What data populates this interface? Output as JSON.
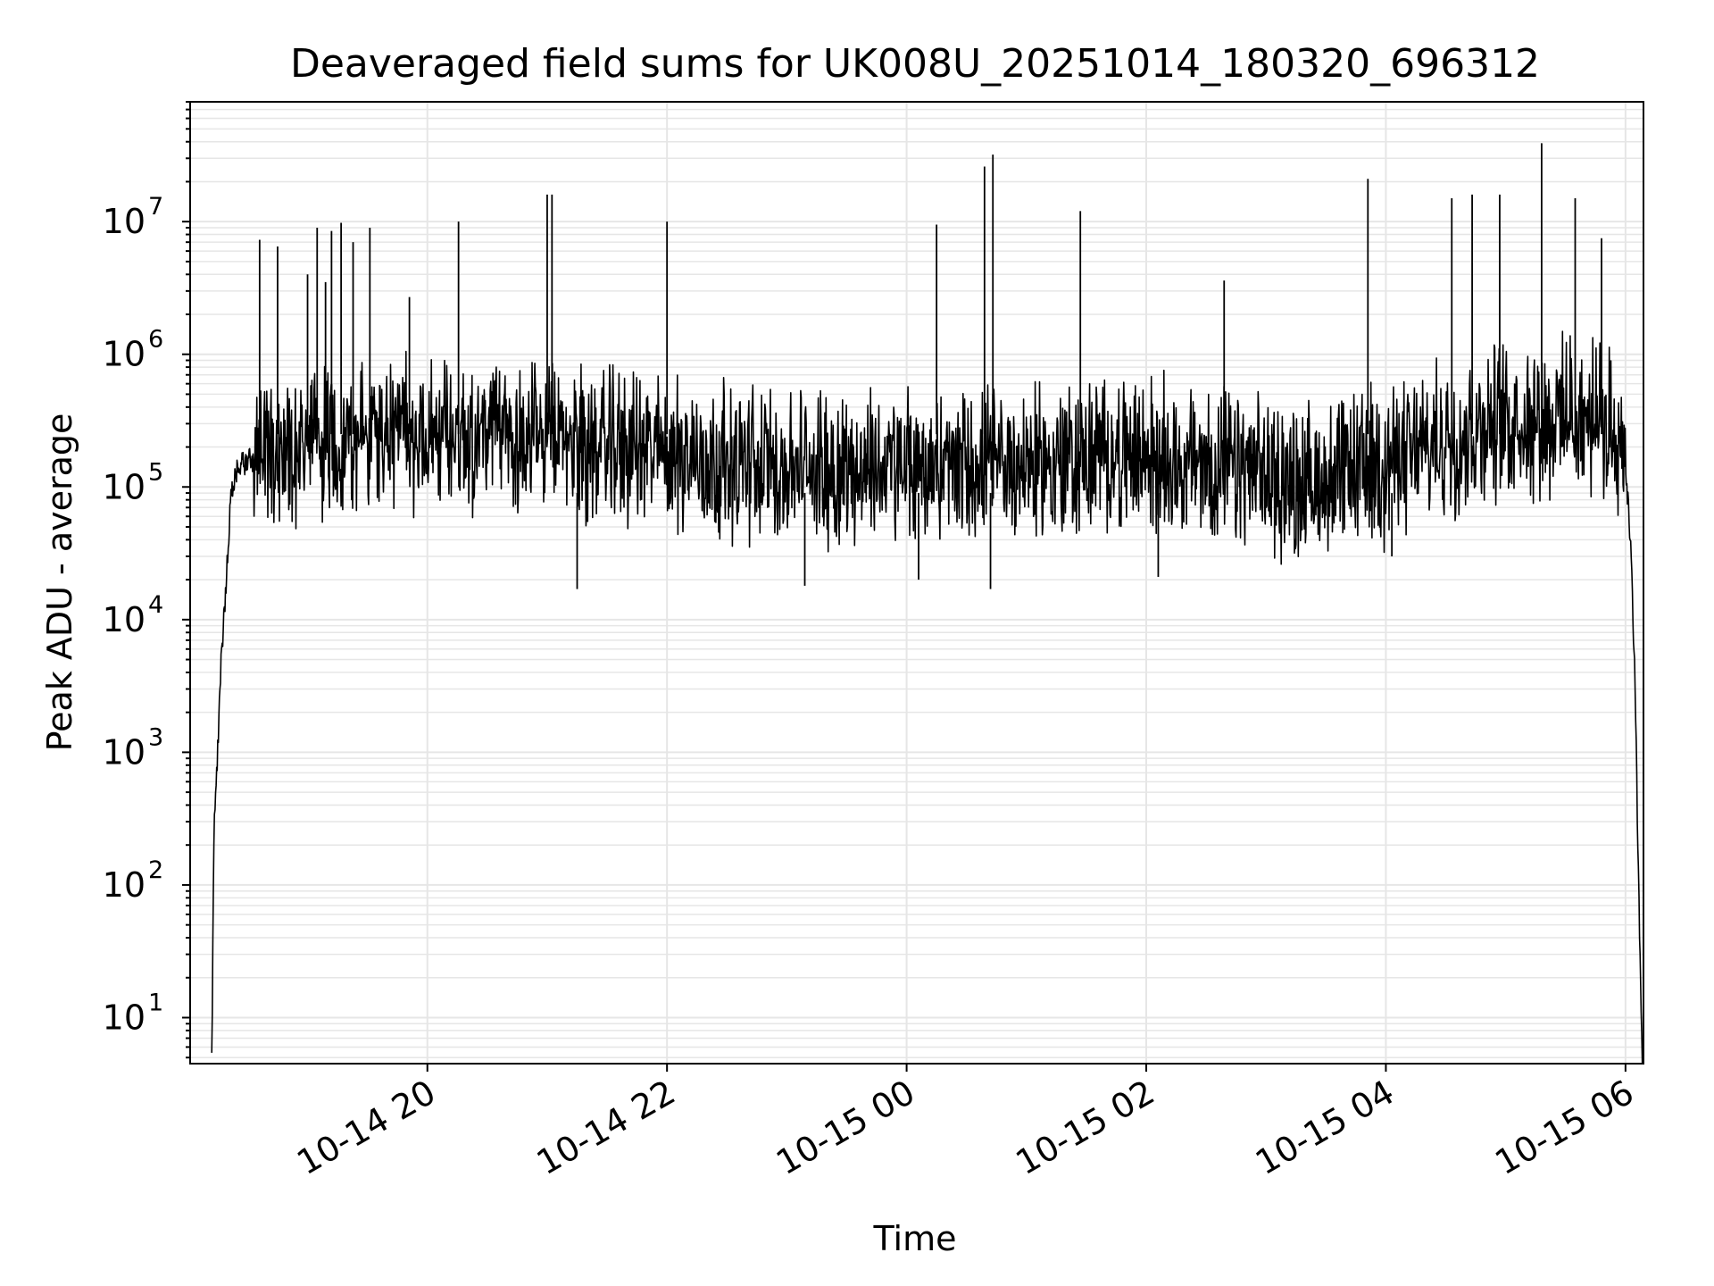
{
  "chart_data": {
    "type": "line",
    "title": "Deaveraged field sums for UK008U_20251014_180320_696312",
    "xlabel": "Time",
    "ylabel": "Peak ADU - average",
    "yscale": "log",
    "ylim": [
      4.5,
      80000000
    ],
    "xlim_hours": [
      18.02,
      30.15
    ],
    "grid": true,
    "legend": "none",
    "line_color": "#000000",
    "grid_color": "#e6e6e6",
    "x_ticks": [
      {
        "hour": 20,
        "label": "10-14 20"
      },
      {
        "hour": 22,
        "label": "10-14 22"
      },
      {
        "hour": 24,
        "label": "10-15 00"
      },
      {
        "hour": 26,
        "label": "10-15 02"
      },
      {
        "hour": 28,
        "label": "10-15 04"
      },
      {
        "hour": 30,
        "label": "10-15 06"
      }
    ],
    "y_ticks": [
      {
        "value": 10,
        "base": "10",
        "exp": "1"
      },
      {
        "value": 100,
        "base": "10",
        "exp": "2"
      },
      {
        "value": 1000,
        "base": "10",
        "exp": "3"
      },
      {
        "value": 10000,
        "base": "10",
        "exp": "4"
      },
      {
        "value": 100000,
        "base": "10",
        "exp": "5"
      },
      {
        "value": 1000000,
        "base": "10",
        "exp": "6"
      },
      {
        "value": 10000000,
        "base": "10",
        "exp": "7"
      }
    ],
    "series": [
      {
        "name": "field sums",
        "x_hours": [
          18.2,
          18.22,
          18.25,
          18.28,
          18.32,
          18.36,
          18.4,
          18.45,
          18.5,
          18.6,
          18.7,
          18.8,
          18.9,
          19.0,
          19.1,
          19.2,
          19.3,
          19.4,
          19.5,
          19.6,
          19.7,
          19.8,
          19.9,
          20.0,
          20.2,
          20.4,
          20.6,
          20.8,
          21.0,
          21.2,
          21.4,
          21.6,
          21.8,
          22.0,
          22.2,
          22.4,
          22.6,
          22.8,
          23.0,
          23.2,
          23.4,
          23.6,
          23.8,
          24.0,
          24.2,
          24.4,
          24.6,
          24.8,
          25.0,
          25.2,
          25.4,
          25.6,
          25.8,
          26.0,
          26.2,
          26.4,
          26.6,
          26.8,
          27.0,
          27.2,
          27.4,
          27.6,
          27.8,
          28.0,
          28.2,
          28.4,
          28.6,
          28.8,
          29.0,
          29.2,
          29.4,
          29.6,
          29.8,
          29.95,
          30.0,
          30.05,
          30.08,
          30.1,
          30.12,
          30.14
        ],
        "baseline": [
          5,
          300,
          1000,
          5000,
          20000,
          80000,
          120000,
          150000,
          160000,
          170000,
          180000,
          190000,
          200000,
          210000,
          220000,
          220000,
          230000,
          240000,
          240000,
          250000,
          250000,
          250000,
          250000,
          260000,
          260000,
          250000,
          250000,
          240000,
          230000,
          220000,
          210000,
          200000,
          190000,
          180000,
          170000,
          160000,
          150000,
          150000,
          140000,
          140000,
          140000,
          140000,
          140000,
          140000,
          140000,
          140000,
          140000,
          150000,
          150000,
          150000,
          160000,
          170000,
          170000,
          170000,
          160000,
          150000,
          140000,
          130000,
          120000,
          110000,
          110000,
          120000,
          140000,
          150000,
          170000,
          200000,
          240000,
          280000,
          320000,
          340000,
          340000,
          330000,
          300000,
          250000,
          150000,
          30000,
          3000,
          300,
          30,
          5
        ],
        "spikes": [
          {
            "hour": 18.6,
            "value": 7300000
          },
          {
            "hour": 18.75,
            "value": 6500000
          },
          {
            "hour": 19.0,
            "value": 4000000
          },
          {
            "hour": 19.08,
            "value": 9000000
          },
          {
            "hour": 19.15,
            "value": 3500000
          },
          {
            "hour": 19.2,
            "value": 8500000
          },
          {
            "hour": 19.28,
            "value": 9800000
          },
          {
            "hour": 19.38,
            "value": 7000000
          },
          {
            "hour": 19.52,
            "value": 9000000
          },
          {
            "hour": 19.85,
            "value": 2700000
          },
          {
            "hour": 20.26,
            "value": 10000000
          },
          {
            "hour": 21.0,
            "value": 16000000
          },
          {
            "hour": 21.04,
            "value": 16000000
          },
          {
            "hour": 22.0,
            "value": 10000000
          },
          {
            "hour": 24.25,
            "value": 9500000
          },
          {
            "hour": 24.65,
            "value": 26000000
          },
          {
            "hour": 24.72,
            "value": 32000000
          },
          {
            "hour": 25.45,
            "value": 12000000
          },
          {
            "hour": 26.65,
            "value": 3600000
          },
          {
            "hour": 27.85,
            "value": 21000000
          },
          {
            "hour": 28.55,
            "value": 15000000
          },
          {
            "hour": 28.72,
            "value": 16000000
          },
          {
            "hour": 28.95,
            "value": 16000000
          },
          {
            "hour": 29.3,
            "value": 39000000
          },
          {
            "hour": 29.58,
            "value": 15000000
          },
          {
            "hour": 29.8,
            "value": 7500000
          }
        ],
        "dips": [
          {
            "hour": 21.25,
            "value": 17000.0
          },
          {
            "hour": 23.15,
            "value": 18000
          },
          {
            "hour": 24.1,
            "value": 20000
          },
          {
            "hour": 24.7,
            "value": 17000
          },
          {
            "hour": 26.1,
            "value": 21000
          },
          {
            "hour": 28.05,
            "value": 30000
          }
        ]
      }
    ]
  }
}
